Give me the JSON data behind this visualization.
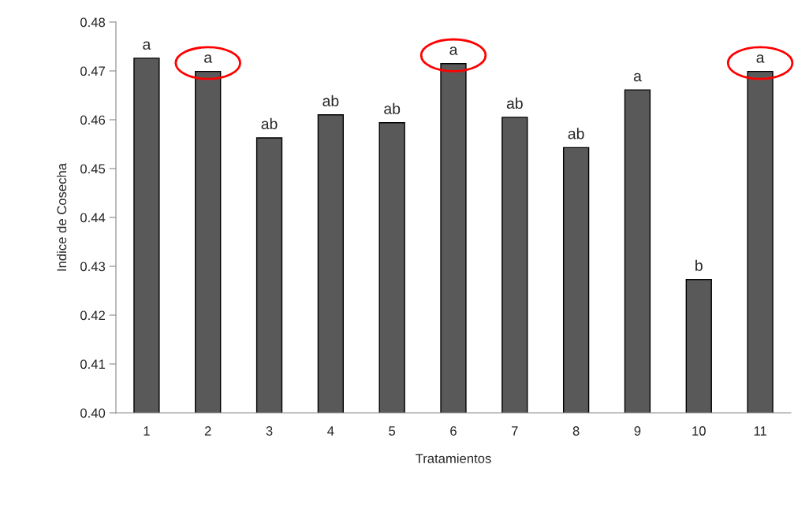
{
  "chart_data": {
    "type": "bar",
    "xlabel": "Tratamientos",
    "ylabel": "Indice de Cosecha",
    "categories": [
      "1",
      "2",
      "3",
      "4",
      "5",
      "6",
      "7",
      "8",
      "9",
      "10",
      "11"
    ],
    "values": [
      0.4726,
      0.4699,
      0.4563,
      0.461,
      0.4594,
      0.4715,
      0.4605,
      0.4543,
      0.4661,
      0.4273,
      0.4699
    ],
    "color": "#595959",
    "ylim": [
      0.4,
      0.48
    ],
    "yticks": [
      {
        "value": 0.4,
        "label": "0.40"
      },
      {
        "value": 0.41,
        "label": "0.41"
      },
      {
        "value": 0.42,
        "label": "0.42"
      },
      {
        "value": 0.43,
        "label": "0.43"
      },
      {
        "value": 0.44,
        "label": "0.44"
      },
      {
        "value": 0.45,
        "label": "0.45"
      },
      {
        "value": 0.46,
        "label": "0.46"
      },
      {
        "value": 0.47,
        "label": "0.47"
      },
      {
        "value": 0.48,
        "label": "0.48"
      }
    ],
    "grid": false,
    "legend": false,
    "annotations": [
      {
        "text": "a",
        "x": "1",
        "y": 0.4726
      },
      {
        "text": "a",
        "x": "2",
        "y": 0.4699
      },
      {
        "text": "ab",
        "x": "3",
        "y": 0.4563
      },
      {
        "text": "ab",
        "x": "4",
        "y": 0.461
      },
      {
        "text": "ab",
        "x": "5",
        "y": 0.4594
      },
      {
        "text": "a",
        "x": "6",
        "y": 0.4715
      },
      {
        "text": "ab",
        "x": "7",
        "y": 0.4605
      },
      {
        "text": "ab",
        "x": "8",
        "y": 0.4543
      },
      {
        "text": "a",
        "x": "9",
        "y": 0.4661
      },
      {
        "text": "b",
        "x": "10",
        "y": 0.4273
      },
      {
        "text": "a",
        "x": "11",
        "y": 0.4699
      }
    ]
  }
}
